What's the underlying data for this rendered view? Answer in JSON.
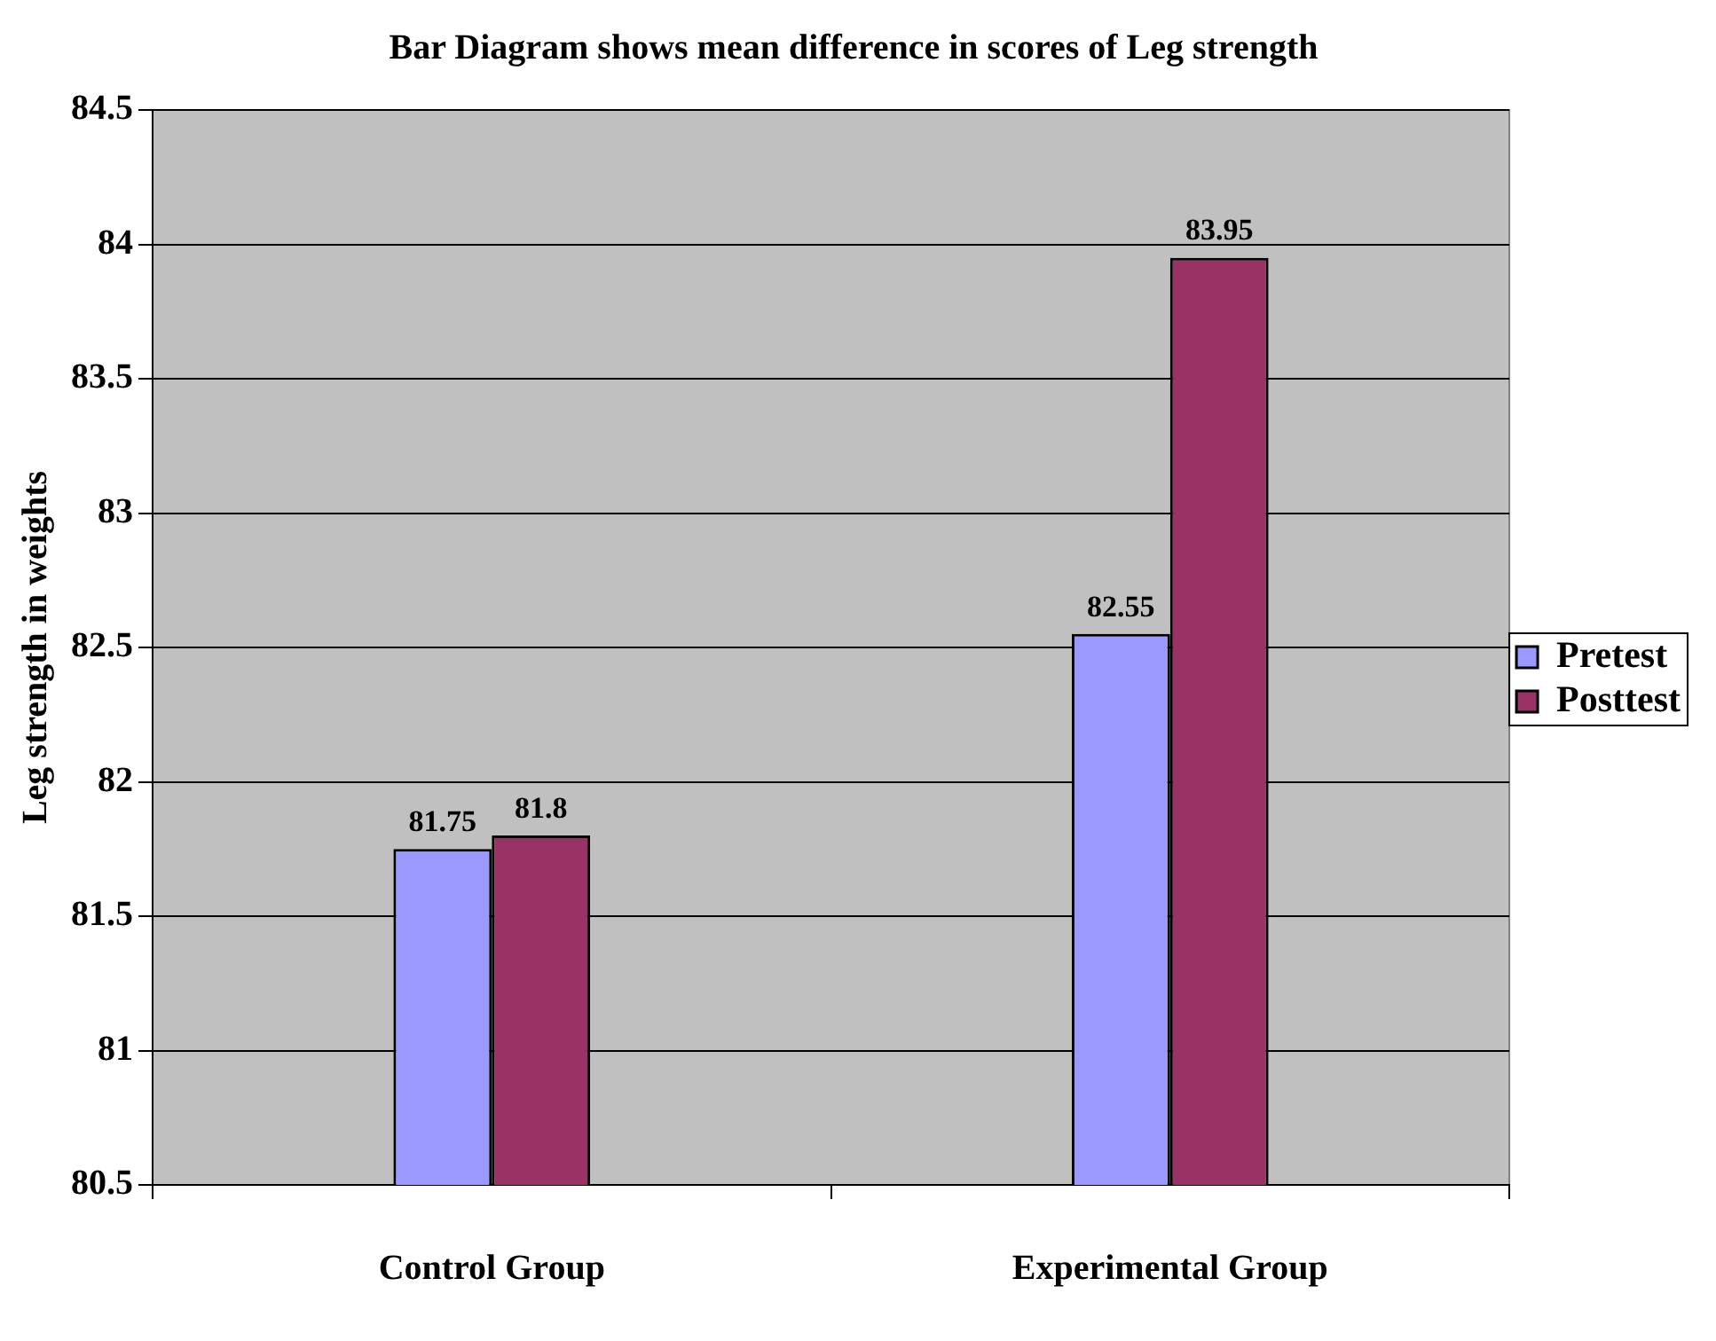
{
  "chart_data": {
    "type": "bar",
    "title": "Bar Diagram shows mean difference in scores of Leg strength",
    "ylabel": "Leg strength in weights",
    "categories": [
      "Control Group",
      "Experimental Group"
    ],
    "series": [
      {
        "name": "Pretest",
        "color": "#9999ff",
        "values": [
          81.75,
          82.55
        ]
      },
      {
        "name": "Posttest",
        "color": "#993366",
        "values": [
          81.8,
          83.95
        ]
      }
    ],
    "ylim": [
      80.5,
      84.5
    ],
    "yticks": [
      80.5,
      81,
      81.5,
      82,
      82.5,
      83,
      83.5,
      84,
      84.5
    ],
    "grid": "y",
    "legend": "right",
    "data_labels": true
  }
}
